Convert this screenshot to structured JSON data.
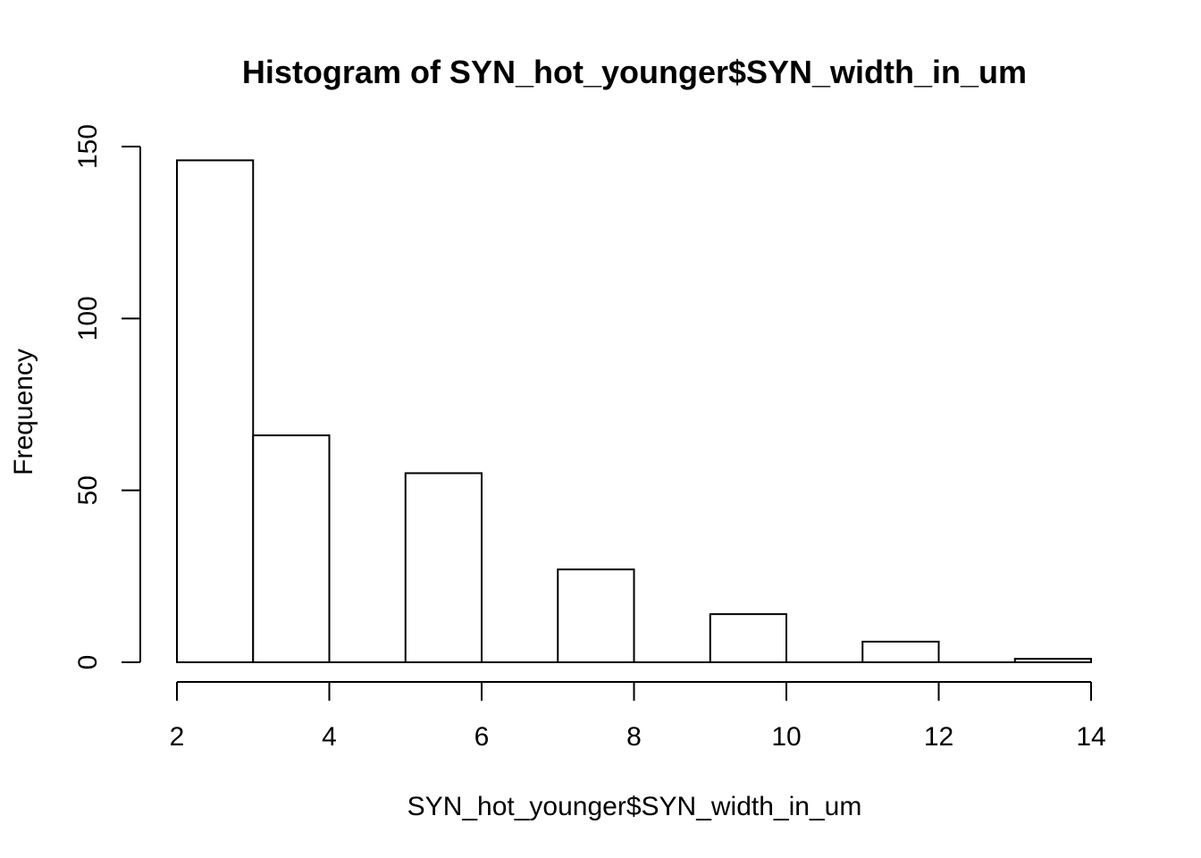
{
  "chart_data": {
    "type": "bar",
    "title": "Histogram of SYN_hot_younger$SYN_width_in_um",
    "xlabel": "SYN_hot_younger$SYN_width_in_um",
    "ylabel": "Frequency",
    "bins": [
      {
        "start": 2,
        "end": 3,
        "count": 146
      },
      {
        "start": 3,
        "end": 4,
        "count": 66
      },
      {
        "start": 4,
        "end": 5,
        "count": 0
      },
      {
        "start": 5,
        "end": 6,
        "count": 55
      },
      {
        "start": 6,
        "end": 7,
        "count": 0
      },
      {
        "start": 7,
        "end": 8,
        "count": 27
      },
      {
        "start": 8,
        "end": 9,
        "count": 0
      },
      {
        "start": 9,
        "end": 10,
        "count": 14
      },
      {
        "start": 10,
        "end": 11,
        "count": 0
      },
      {
        "start": 11,
        "end": 12,
        "count": 6
      },
      {
        "start": 12,
        "end": 13,
        "count": 0
      },
      {
        "start": 13,
        "end": 14,
        "count": 1
      }
    ],
    "xlim": [
      2,
      14
    ],
    "ylim": [
      0,
      150
    ],
    "x_ticks": [
      "2",
      "4",
      "6",
      "8",
      "10",
      "12",
      "14"
    ],
    "y_ticks": [
      "0",
      "50",
      "100",
      "150"
    ],
    "grid": false,
    "legend": "none",
    "colors": {
      "bar_fill": "#ffffff",
      "bar_stroke": "#000000",
      "text": "#000000"
    }
  }
}
